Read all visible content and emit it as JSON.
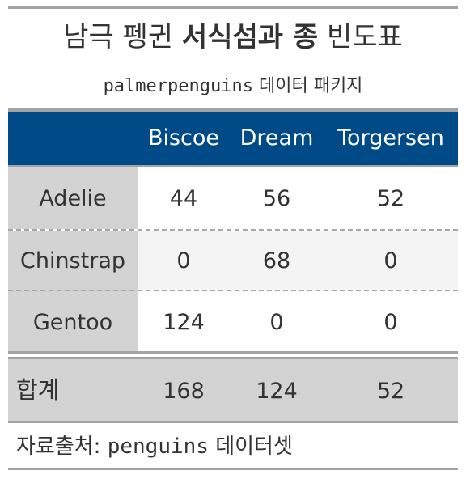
{
  "title": {
    "prefix": "남극 펭귄 ",
    "bold": "서식섬과 종",
    "suffix": " 빈도표"
  },
  "subtitle": {
    "code": "palmerpenguins",
    "text": " 데이터 패키지"
  },
  "columns": [
    "",
    "Biscoe",
    "Dream",
    "Torgersen"
  ],
  "rows": [
    {
      "species": "Adelie",
      "values": [
        "44",
        "56",
        "52"
      ]
    },
    {
      "species": "Chinstrap",
      "values": [
        "0",
        "68",
        "0"
      ]
    },
    {
      "species": "Gentoo",
      "values": [
        "124",
        "0",
        "0"
      ]
    }
  ],
  "summary": {
    "label": "합계",
    "values": [
      "168",
      "124",
      "52"
    ]
  },
  "source": {
    "prefix": "자료출처: ",
    "code": "penguins",
    "suffix": " 데이터셋"
  },
  "colors": {
    "header_bg": "#004b87",
    "stub_bg": "#d3d3d3",
    "rule": "#a3a3a3"
  }
}
